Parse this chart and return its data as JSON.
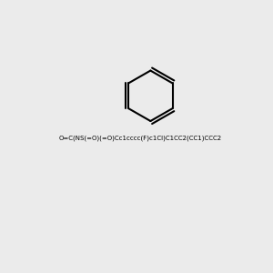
{
  "smiles": "O=C(NS(=O)(=O)Cc1cccc(F)c1Cl)C1CC2(CC1)CCC2",
  "background_color": "#ebebeb",
  "atom_colors": {
    "Cl": "#7fc97f",
    "F": "#cc44cc",
    "S": "#cccc00",
    "N": "#0000ff",
    "O": "#ff0000",
    "C": "#000000",
    "H": "#000000"
  },
  "bond_color": "#000000",
  "line_width": 1.5
}
